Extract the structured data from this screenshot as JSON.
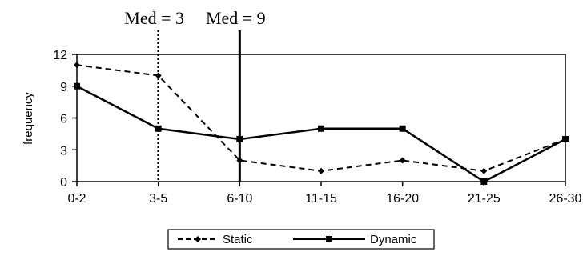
{
  "chart_data": {
    "type": "line",
    "categories": [
      "0-2",
      "3-5",
      "6-10",
      "11-15",
      "16-20",
      "21-25",
      "26-30"
    ],
    "series": [
      {
        "name": "Static",
        "values": [
          11,
          10,
          2,
          1,
          2,
          1,
          4
        ],
        "style": "dashed",
        "marker": "diamond",
        "color": "#000000"
      },
      {
        "name": "Dynamic",
        "values": [
          9,
          5,
          4,
          5,
          5,
          0,
          4
        ],
        "style": "solid",
        "marker": "square",
        "color": "#000000"
      }
    ],
    "ylabel": "frequency",
    "ylim": [
      0,
      12
    ],
    "yticks": [
      0,
      3,
      6,
      9,
      12
    ],
    "grid": false,
    "legend": "bottom",
    "annotations": [
      {
        "text": "Med = 3",
        "x_category": "3-5",
        "line": "dotted"
      },
      {
        "text": "Med = 9",
        "x_category": "6-10",
        "line": "solid"
      }
    ]
  }
}
